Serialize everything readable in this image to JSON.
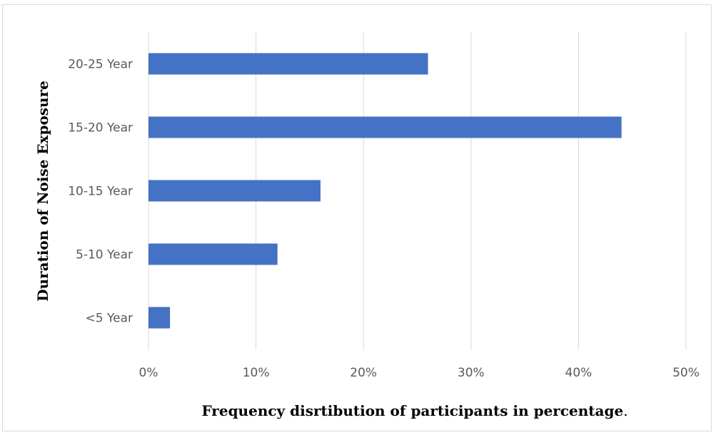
{
  "chart_data": {
    "type": "bar",
    "orientation": "horizontal",
    "categories": [
      "<5 Year",
      "5-10 Year",
      "10-15 Year",
      "15-20 Year",
      "20-25 Year"
    ],
    "values": [
      2,
      12,
      16,
      44,
      26
    ],
    "value_unit": "%",
    "xlim": [
      0,
      50
    ],
    "xticks": [
      "0%",
      "10%",
      "20%",
      "30%",
      "40%",
      "50%"
    ],
    "xlabel": "Frequency disrtibution of participants in percentage",
    "xlabel_suffix": ".",
    "ylabel": "Duration of Noise Exposure",
    "grid": "vertical",
    "legend": "none",
    "colors": {
      "bar": "#4472c4",
      "grid": "#d9d9d9"
    }
  }
}
